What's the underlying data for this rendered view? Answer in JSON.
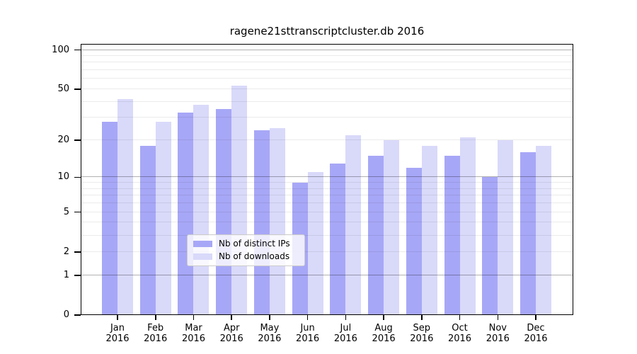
{
  "title": "ragene21sttranscriptcluster.db 2016",
  "chart_data": {
    "type": "bar",
    "title": "ragene21sttranscriptcluster.db 2016",
    "categories": [
      "Jan",
      "Feb",
      "Mar",
      "Apr",
      "May",
      "Jun",
      "Jul",
      "Aug",
      "Sep",
      "Oct",
      "Nov",
      "Dec"
    ],
    "x_tick_year": "2016",
    "series": [
      {
        "name": "Nb of distinct IPs",
        "color": "#a7a7f7",
        "values": [
          28,
          18,
          33,
          35,
          24,
          9,
          13,
          15,
          12,
          15,
          10,
          16
        ]
      },
      {
        "name": "Nb of downloads",
        "color": "#d9d9fa",
        "values": [
          42,
          28,
          38,
          53,
          25,
          11,
          22,
          20,
          18,
          21,
          20,
          18
        ]
      }
    ],
    "y_axis": {
      "scale": "log1p",
      "tick_values": [
        0,
        1,
        2,
        5,
        10,
        20,
        50,
        100
      ],
      "tick_labels": [
        "0",
        "1",
        "2",
        "5",
        "10",
        "20",
        "50",
        "100"
      ],
      "minor_gridlines": [
        2,
        3,
        4,
        5,
        6,
        7,
        8,
        9,
        20,
        30,
        40,
        50,
        60,
        70,
        80,
        90
      ],
      "major_gridlines": [
        1,
        10,
        100
      ],
      "ylim": [
        0,
        113
      ]
    },
    "grid": "on",
    "legend": {
      "position": "lower-center-inside",
      "labels": [
        "Nb of distinct IPs",
        "Nb of downloads"
      ]
    }
  }
}
